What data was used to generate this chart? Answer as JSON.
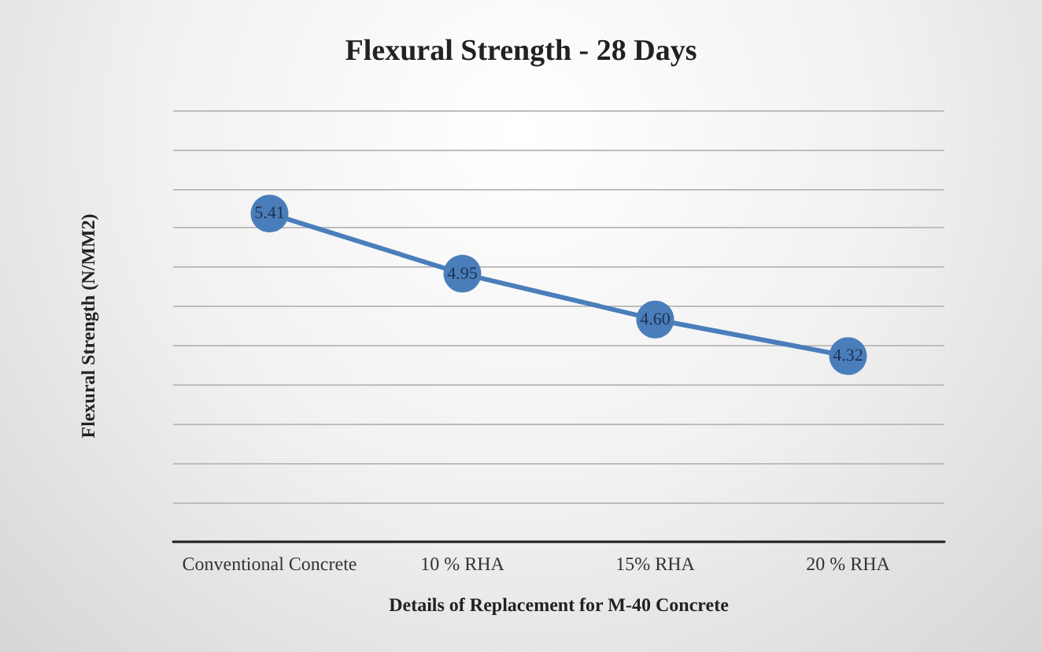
{
  "chart_data": {
    "type": "line",
    "title": "Flexural Strength - 28 Days",
    "xlabel": "Details of Replacement for M-40 Concrete",
    "ylabel": "Flexural Strength (N/MM2)",
    "categories": [
      "Conventional Concrete",
      "10 % RHA",
      "15% RHA",
      "20 % RHA"
    ],
    "series": [
      {
        "color": "#4a7ebb",
        "values": [
          5.41,
          4.95,
          4.6,
          4.32
        ],
        "value_labels": [
          "5.41",
          "4.95",
          "4.60",
          "4.32"
        ]
      }
    ],
    "ylim": [
      2.9,
      6.2
    ],
    "yticks": [
      {
        "value": 2.9,
        "label": null
      },
      {
        "value": 3.2,
        "label": null
      },
      {
        "value": 3.5,
        "label": null
      },
      {
        "value": 3.8,
        "label": null
      },
      {
        "value": 4.1,
        "label": null
      },
      {
        "value": 4.4,
        "label": null
      },
      {
        "value": 4.7,
        "label": null
      },
      {
        "value": 5.0,
        "label": null
      },
      {
        "value": 5.3,
        "label": null
      },
      {
        "value": 5.6,
        "label": null
      },
      {
        "value": 5.9,
        "label": null
      },
      {
        "value": 6.2,
        "label": null
      }
    ],
    "tick_labels": "x",
    "grid": "y",
    "marker": "circle",
    "line_style": "solid"
  }
}
